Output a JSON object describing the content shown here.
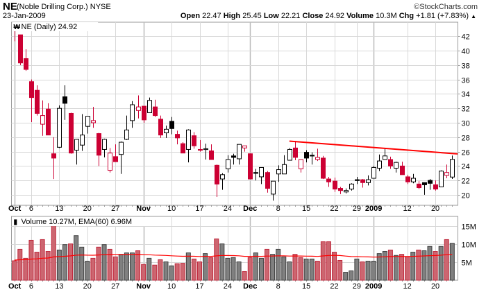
{
  "header": {
    "symbol": "NE",
    "company": "(Noble Drilling Corp.) NYSE",
    "brand": "©StockCharts.com",
    "date": "23-Jan-2009",
    "open_label": "Open",
    "open": "22.47",
    "high_label": "High",
    "high": "25.45",
    "low_label": "Low",
    "low": "22.21",
    "close_label": "Close",
    "close": "24.92",
    "volume_label": "Volume",
    "volume": "10.3M",
    "chg_label": "Chg",
    "chg": "+1.81 (+7.83%)",
    "chg_arrow": "▲"
  },
  "colors": {
    "down": "#cc0033",
    "up": "#000000",
    "vol_down_fill": "#cc6670",
    "vol_down_stroke": "#c0283c",
    "vol_up_fill": "#808080",
    "vol_up_stroke": "#404040",
    "trendline": "#ff0000",
    "ema": "#ff0000",
    "grid": "#d8d8d8"
  },
  "chart_data": [
    {
      "type": "candlestick",
      "title": "NE (Daily) 24.92",
      "legend": "NE (Daily) 24.92",
      "ylim": [
        18.55,
        43.95
      ],
      "yticks": [
        20,
        22,
        24,
        26,
        28,
        30,
        32,
        34,
        36,
        38,
        40,
        42
      ],
      "xtick_labels": [
        {
          "i": 0,
          "label": "Oct",
          "bold": true
        },
        {
          "i": 3,
          "label": "6"
        },
        {
          "i": 8,
          "label": "13"
        },
        {
          "i": 13,
          "label": "20"
        },
        {
          "i": 18,
          "label": "27"
        },
        {
          "i": 23,
          "label": "Nov",
          "bold": true
        },
        {
          "i": 28,
          "label": "10"
        },
        {
          "i": 33,
          "label": "17"
        },
        {
          "i": 38,
          "label": "24"
        },
        {
          "i": 42,
          "label": "Dec",
          "bold": true
        },
        {
          "i": 47,
          "label": "8"
        },
        {
          "i": 52,
          "label": "15"
        },
        {
          "i": 57,
          "label": "22"
        },
        {
          "i": 61,
          "label": "29"
        },
        {
          "i": 64,
          "label": "2009",
          "bold": true
        },
        {
          "i": 70,
          "label": "12"
        },
        {
          "i": 75,
          "label": "20"
        }
      ],
      "ohlc_columns": [
        "open",
        "high",
        "low",
        "close",
        "down_vs_prev_close"
      ],
      "ohlc": [
        [
          43.0,
          43.0,
          41.3,
          42.9,
          1
        ],
        [
          42.2,
          42.2,
          38.0,
          38.3,
          1
        ],
        [
          38.9,
          40.2,
          37.2,
          37.4,
          1
        ],
        [
          35.7,
          36.0,
          30.1,
          33.5,
          1
        ],
        [
          34.5,
          35.2,
          31.0,
          31.3,
          1
        ],
        [
          29.8,
          33.1,
          28.2,
          31.0,
          1
        ],
        [
          31.9,
          32.7,
          28.3,
          28.3,
          1
        ],
        [
          25.7,
          28.0,
          22.2,
          25.1,
          1
        ],
        [
          26.6,
          32.4,
          26.5,
          32.0,
          0
        ],
        [
          33.6,
          35.2,
          30.4,
          32.7,
          0
        ],
        [
          31.3,
          31.4,
          25.7,
          25.8,
          1
        ],
        [
          26.2,
          27.7,
          24.2,
          27.7,
          0
        ],
        [
          26.9,
          31.2,
          26.1,
          28.3,
          0
        ],
        [
          29.5,
          30.9,
          28.5,
          30.9,
          0
        ],
        [
          30.0,
          32.2,
          29.3,
          30.3,
          1
        ],
        [
          28.5,
          28.6,
          24.0,
          25.5,
          1
        ],
        [
          26.3,
          27.8,
          25.2,
          27.7,
          0
        ],
        [
          23.4,
          26.5,
          23.1,
          25.8,
          1
        ],
        [
          25.3,
          27.0,
          24.6,
          24.6,
          1
        ],
        [
          25.6,
          27.4,
          22.9,
          27.3,
          0
        ],
        [
          27.7,
          31.0,
          27.6,
          29.0,
          0
        ],
        [
          30.3,
          33.0,
          29.3,
          32.5,
          0
        ],
        [
          31.7,
          33.8,
          30.6,
          32.2,
          1
        ],
        [
          32.3,
          32.3,
          30.0,
          30.4,
          1
        ],
        [
          31.4,
          33.5,
          31.4,
          33.1,
          0
        ],
        [
          32.2,
          33.2,
          30.8,
          31.0,
          1
        ],
        [
          30.5,
          31.0,
          27.9,
          28.3,
          1
        ],
        [
          28.6,
          29.6,
          27.9,
          29.1,
          0
        ],
        [
          30.2,
          30.8,
          28.4,
          29.2,
          0
        ],
        [
          28.4,
          28.9,
          27.0,
          27.9,
          1
        ],
        [
          27.1,
          27.3,
          25.8,
          25.8,
          1
        ],
        [
          26.3,
          29.1,
          24.5,
          29.0,
          0
        ],
        [
          28.2,
          28.7,
          26.4,
          26.8,
          1
        ],
        [
          26.3,
          27.6,
          26.0,
          26.2,
          1
        ],
        [
          26.3,
          27.1,
          24.9,
          26.4,
          0
        ],
        [
          26.1,
          27.0,
          24.9,
          24.9,
          1
        ],
        [
          24.1,
          24.2,
          19.7,
          21.5,
          1
        ],
        [
          22.2,
          23.0,
          20.7,
          22.8,
          0
        ],
        [
          23.6,
          25.5,
          23.1,
          24.9,
          0
        ],
        [
          25.4,
          25.7,
          24.2,
          25.2,
          0
        ],
        [
          25.0,
          27.0,
          24.2,
          27.0,
          0
        ],
        [
          26.5,
          26.8,
          26.0,
          26.8,
          1
        ],
        [
          25.7,
          25.7,
          22.2,
          22.2,
          1
        ],
        [
          23.1,
          23.6,
          22.0,
          23.1,
          0
        ],
        [
          22.5,
          23.8,
          21.5,
          23.8,
          0
        ],
        [
          23.1,
          23.3,
          20.3,
          20.9,
          1
        ],
        [
          20.1,
          21.9,
          19.2,
          21.9,
          0
        ],
        [
          22.9,
          24.1,
          21.8,
          23.5,
          0
        ],
        [
          22.9,
          25.5,
          22.9,
          24.2,
          0
        ],
        [
          24.8,
          26.5,
          24.8,
          26.3,
          0
        ],
        [
          26.5,
          27.5,
          24.8,
          25.2,
          1
        ],
        [
          23.6,
          24.9,
          23.1,
          24.9,
          1
        ],
        [
          25.9,
          26.2,
          24.5,
          25.1,
          0
        ],
        [
          25.5,
          25.9,
          24.2,
          25.5,
          0
        ],
        [
          24.9,
          26.4,
          24.7,
          25.2,
          1
        ],
        [
          25.1,
          25.4,
          22.2,
          22.3,
          1
        ],
        [
          22.2,
          22.5,
          21.1,
          21.8,
          1
        ],
        [
          21.9,
          22.4,
          20.4,
          20.8,
          1
        ],
        [
          20.9,
          21.1,
          20.1,
          20.6,
          1
        ],
        [
          20.4,
          20.9,
          20.2,
          20.6,
          0
        ],
        [
          20.8,
          21.6,
          20.6,
          21.5,
          0
        ],
        [
          22.1,
          22.5,
          21.5,
          22.1,
          0
        ],
        [
          22.1,
          22.2,
          21.0,
          21.7,
          1
        ],
        [
          21.7,
          22.7,
          21.3,
          22.1,
          0
        ],
        [
          22.3,
          24.0,
          22.3,
          23.8,
          0
        ],
        [
          23.7,
          25.6,
          23.3,
          24.7,
          0
        ],
        [
          24.9,
          26.4,
          24.9,
          25.4,
          0
        ],
        [
          24.9,
          25.3,
          23.6,
          24.0,
          1
        ],
        [
          23.7,
          24.6,
          23.1,
          24.5,
          0
        ],
        [
          24.0,
          24.6,
          22.8,
          22.8,
          1
        ],
        [
          22.5,
          22.8,
          21.5,
          21.8,
          1
        ],
        [
          21.8,
          22.9,
          21.6,
          22.3,
          0
        ],
        [
          21.5,
          21.9,
          20.8,
          21.0,
          1
        ],
        [
          21.7,
          21.7,
          20.0,
          21.4,
          0
        ],
        [
          22.0,
          22.2,
          20.7,
          21.6,
          0
        ],
        [
          21.4,
          22.0,
          20.6,
          20.8,
          1
        ],
        [
          21.1,
          23.4,
          21.1,
          23.3,
          0
        ],
        [
          22.7,
          24.2,
          22.3,
          23.1,
          1
        ],
        [
          22.47,
          25.45,
          22.21,
          24.92,
          0
        ]
      ],
      "trendline": [
        {
          "i": 49,
          "price": 27.45
        },
        {
          "i": 78.95,
          "price": 25.68
        }
      ]
    },
    {
      "type": "bar",
      "legend": "Volume 10.27M, EMA(60) 6.96M",
      "unit": "M",
      "ylim": [
        0,
        17.75
      ],
      "yticks": [
        {
          "v": 5,
          "label": "5M"
        },
        {
          "v": 10,
          "label": "10M"
        },
        {
          "v": 15,
          "label": "15M"
        }
      ],
      "values": [
        5.4,
        8.6,
        6.1,
        11.1,
        7.8,
        11.3,
        8.0,
        15.5,
        8.4,
        9.9,
        10.1,
        12.4,
        9.2,
        5.3,
        6.1,
        9.2,
        9.9,
        8.6,
        6.5,
        7.2,
        7.6,
        7.6,
        8.2,
        4.4,
        6.1,
        4.2,
        5.7,
        5.1,
        4.0,
        4.6,
        4.7,
        7.6,
        5.9,
        5.1,
        7.4,
        6.3,
        11.5,
        10.1,
        6.1,
        6.3,
        5.1,
        2.4,
        6.3,
        7.6,
        6.1,
        8.6,
        7.2,
        8.6,
        6.5,
        5.1,
        7.2,
        6.3,
        5.9,
        5.9,
        5.3,
        10.7,
        10.7,
        7.8,
        5.5,
        2.2,
        2.6,
        5.9,
        5.1,
        5.3,
        5.3,
        7.4,
        8.0,
        8.4,
        6.9,
        7.2,
        6.5,
        7.8,
        8.4,
        8.2,
        9.4,
        8.0,
        9.4,
        11.3,
        10.27
      ],
      "ema_period": 60,
      "ema_seed": 5.6,
      "ema_last": 6.96
    }
  ]
}
